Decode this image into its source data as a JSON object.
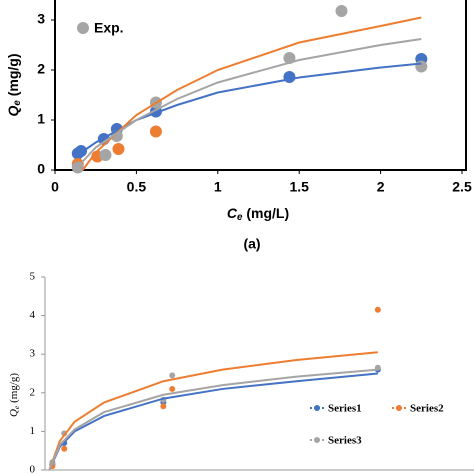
{
  "chart_data": [
    {
      "type": "scatter",
      "ylabel_symbol": "Q",
      "ylabel_sub": "e",
      "ylabel_unit": " (mg/g)",
      "xlabel_symbol": "C",
      "xlabel_sub": "e",
      "xlabel_unit": " (mg/L)",
      "caption": "(a)",
      "xlim": [
        0,
        2.5
      ],
      "xticks": [
        0,
        0.5,
        1,
        1.5,
        2,
        2.5
      ],
      "ylim": [
        0,
        3.4
      ],
      "yticks": [
        0,
        1,
        2,
        3
      ],
      "series": [
        {
          "color": "#4472c4",
          "mode": "markers",
          "x": [
            0.14,
            0.16,
            0.3,
            0.38,
            0.62,
            1.44,
            2.25
          ],
          "values": [
            0.33,
            0.38,
            0.62,
            0.82,
            1.17,
            1.86,
            2.22
          ]
        },
        {
          "color": "#ed7d31",
          "mode": "markers",
          "x": [
            0.14,
            0.26,
            0.39,
            0.62
          ],
          "values": [
            0.12,
            0.27,
            0.42,
            0.77
          ]
        },
        {
          "name": "Exp.",
          "color": "#a5a5a5",
          "mode": "markers",
          "x": [
            0.14,
            0.31,
            0.38,
            0.62,
            1.44,
            1.76,
            2.25
          ],
          "values": [
            0.05,
            0.3,
            0.68,
            1.35,
            2.24,
            3.18,
            2.07
          ]
        },
        {
          "color": "#4472c4",
          "mode": "line",
          "x": [
            0.13,
            0.25,
            0.5,
            0.75,
            1,
            1.5,
            2,
            2.25
          ],
          "values": [
            0.28,
            0.55,
            1.0,
            1.3,
            1.55,
            1.85,
            2.05,
            2.13
          ]
        },
        {
          "color": "#ed7d31",
          "mode": "line",
          "x": [
            0.17,
            0.25,
            0.5,
            0.75,
            1,
            1.5,
            2,
            2.25
          ],
          "values": [
            0.0,
            0.35,
            1.1,
            1.6,
            2.0,
            2.55,
            2.88,
            3.05
          ]
        },
        {
          "color": "#a5a5a5",
          "mode": "line",
          "x": [
            0.15,
            0.25,
            0.5,
            0.75,
            1,
            1.5,
            2,
            2.25
          ],
          "values": [
            0.1,
            0.45,
            1.0,
            1.42,
            1.75,
            2.2,
            2.5,
            2.62
          ]
        }
      ]
    },
    {
      "type": "scatter",
      "ylabel_symbol": "Q",
      "ylabel_sub": "e",
      "ylabel_unit": " (mg/g)",
      "xlim": [
        0,
        2.9
      ],
      "ylim": [
        0,
        5
      ],
      "yticks": [
        0,
        1,
        2,
        3,
        4,
        5
      ],
      "series": [
        {
          "name": "Series1",
          "color": "#4472c4",
          "mode": "markers",
          "x": [
            0.05,
            0.13,
            0.8,
            2.25
          ],
          "values": [
            0.15,
            0.7,
            1.75,
            2.6
          ]
        },
        {
          "name": "Series2",
          "color": "#ed7d31",
          "mode": "markers",
          "x": [
            0.05,
            0.13,
            0.8,
            0.86,
            2.25
          ],
          "values": [
            0.1,
            0.55,
            1.65,
            2.1,
            4.15
          ]
        },
        {
          "name": "Series3",
          "color": "#a5a5a5",
          "mode": "markers",
          "x": [
            0.05,
            0.13,
            0.8,
            0.86,
            2.25
          ],
          "values": [
            0.2,
            0.95,
            1.82,
            2.45,
            2.65
          ]
        },
        {
          "color": "#4472c4",
          "mode": "line",
          "x": [
            0.03,
            0.1,
            0.2,
            0.4,
            0.8,
            1.2,
            1.7,
            2.25
          ],
          "values": [
            0.0,
            0.6,
            1.0,
            1.4,
            1.85,
            2.1,
            2.3,
            2.5
          ]
        },
        {
          "color": "#ed7d31",
          "mode": "line",
          "x": [
            0.03,
            0.1,
            0.2,
            0.4,
            0.8,
            1.2,
            1.7,
            2.25
          ],
          "values": [
            0.0,
            0.75,
            1.25,
            1.75,
            2.3,
            2.6,
            2.85,
            3.05
          ]
        },
        {
          "color": "#a5a5a5",
          "mode": "line",
          "x": [
            0.03,
            0.1,
            0.2,
            0.4,
            0.8,
            1.2,
            1.7,
            2.25
          ],
          "values": [
            0.0,
            0.65,
            1.05,
            1.5,
            1.95,
            2.2,
            2.42,
            2.6
          ]
        }
      ]
    }
  ]
}
